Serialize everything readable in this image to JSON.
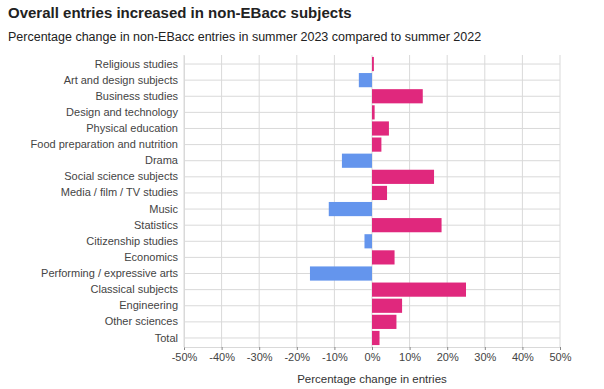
{
  "chart_data": {
    "type": "bar",
    "orientation": "horizontal",
    "title": "Overall entries increased in non-EBacc subjects",
    "subtitle": "Percentage change in non-EBacc entries in summer 2023 compared to summer 2022",
    "x_label": "Percentage change in entries",
    "categories": [
      "Religious studies",
      "Art and design subjects",
      "Business studies",
      "Design and technology",
      "Physical education",
      "Food preparation and nutrition",
      "Drama",
      "Social science subjects",
      "Media / film / TV studies",
      "Music",
      "Statistics",
      "Citizenship studies",
      "Economics",
      "Performing / expressive arts",
      "Classical subjects",
      "Engineering",
      "Other sciences",
      "Total"
    ],
    "values": [
      0.5,
      -3.5,
      13.5,
      0.7,
      4.5,
      2.5,
      -8,
      16.5,
      4,
      -11.5,
      18.5,
      -2,
      6,
      -16.5,
      25,
      8,
      6.5,
      2
    ],
    "colors": [
      "#e0287d",
      "#6495ed",
      "#e0287d",
      "#e0287d",
      "#e0287d",
      "#e0287d",
      "#6495ed",
      "#e0287d",
      "#e0287d",
      "#6495ed",
      "#e0287d",
      "#6495ed",
      "#e0287d",
      "#6495ed",
      "#e0287d",
      "#e0287d",
      "#e0287d",
      "#e0287d"
    ],
    "xlim": [
      -50,
      50
    ],
    "xticks": [
      {
        "value": -50,
        "label": "-50%"
      },
      {
        "value": -40,
        "label": "-40%"
      },
      {
        "value": -30,
        "label": "-30%"
      },
      {
        "value": -20,
        "label": "-20%"
      },
      {
        "value": -10,
        "label": "-10%"
      },
      {
        "value": 0,
        "label": "0%"
      },
      {
        "value": 10,
        "label": "10%"
      },
      {
        "value": 20,
        "label": "20%"
      },
      {
        "value": 30,
        "label": "30%"
      },
      {
        "value": 40,
        "label": "40%"
      },
      {
        "value": 50,
        "label": "50%"
      }
    ],
    "grid": true
  }
}
